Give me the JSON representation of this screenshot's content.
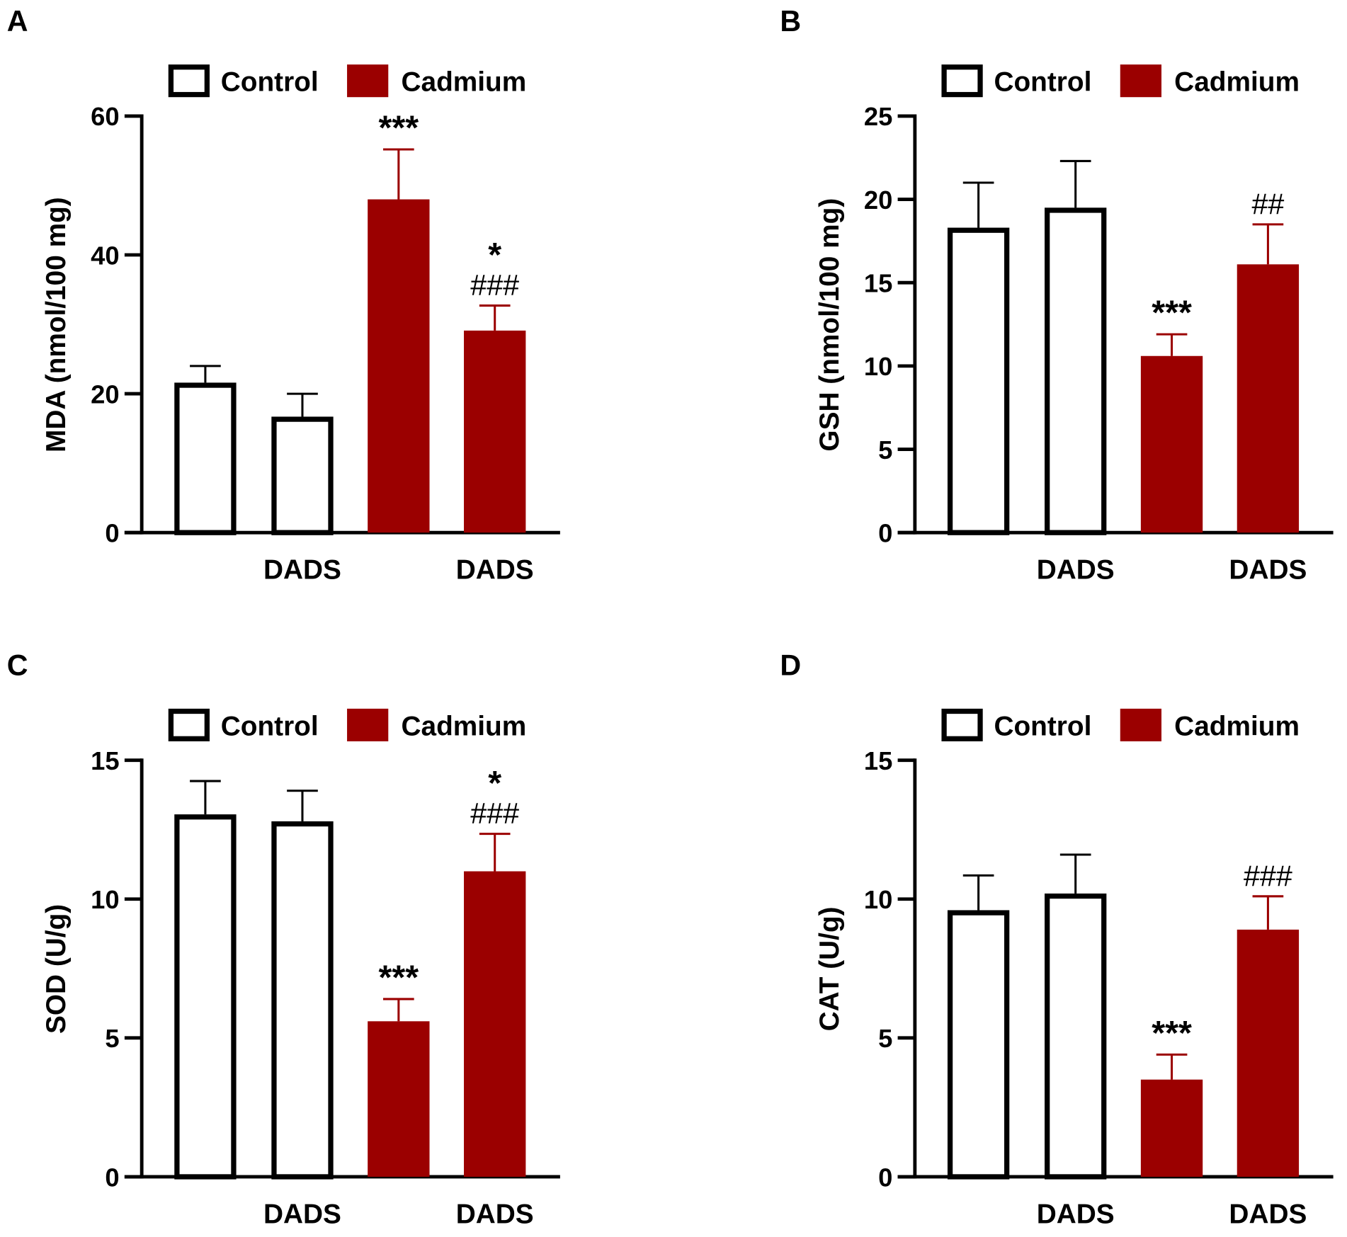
{
  "legend": {
    "control": "Control",
    "cadmium": "Cadmium"
  },
  "colors": {
    "control_fill": "#ffffff",
    "control_stroke": "#000000",
    "cadmium": "#9b0000"
  },
  "chart_data": [
    {
      "panel": "A",
      "type": "bar",
      "ylabel": "MDA (nmol/100 mg)",
      "ylim": [
        0,
        60
      ],
      "yticks": [
        "0",
        "20",
        "40",
        "60"
      ],
      "categories": [
        "",
        "DADS",
        "",
        "DADS"
      ],
      "groups": [
        "Control",
        "Control",
        "Cadmium",
        "Cadmium"
      ],
      "values": [
        21.6,
        16.7,
        48.0,
        29.1
      ],
      "errors": [
        2.4,
        3.3,
        7.2,
        3.6
      ],
      "annotations": [
        [],
        [],
        [
          "***"
        ],
        [
          "*",
          "###"
        ]
      ],
      "legend": "top"
    },
    {
      "panel": "B",
      "type": "bar",
      "ylabel": "GSH (nmol/100 mg)",
      "ylim": [
        0,
        25
      ],
      "yticks": [
        "0",
        "5",
        "10",
        "15",
        "20",
        "25"
      ],
      "categories": [
        "",
        "DADS",
        "",
        "DADS"
      ],
      "groups": [
        "Control",
        "Control",
        "Cadmium",
        "Cadmium"
      ],
      "values": [
        18.3,
        19.5,
        10.6,
        16.1
      ],
      "errors": [
        2.7,
        2.8,
        1.3,
        2.4
      ],
      "annotations": [
        [],
        [],
        [
          "***"
        ],
        [
          "##"
        ]
      ],
      "legend": "top"
    },
    {
      "panel": "C",
      "type": "bar",
      "ylabel": "SOD (U/g)",
      "ylim": [
        0,
        15
      ],
      "yticks": [
        "0",
        "5",
        "10",
        "15"
      ],
      "categories": [
        "",
        "DADS",
        "",
        "DADS"
      ],
      "groups": [
        "Control",
        "Control",
        "Cadmium",
        "Cadmium"
      ],
      "values": [
        13.05,
        12.8,
        5.6,
        11.0
      ],
      "errors": [
        1.2,
        1.1,
        0.8,
        1.35
      ],
      "annotations": [
        [],
        [],
        [
          "***"
        ],
        [
          "*",
          "###"
        ]
      ],
      "legend": "top"
    },
    {
      "panel": "D",
      "type": "bar",
      "ylabel": "CAT (U/g)",
      "ylim": [
        0,
        15
      ],
      "yticks": [
        "0",
        "5",
        "10",
        "15"
      ],
      "categories": [
        "",
        "DADS",
        "",
        "DADS"
      ],
      "groups": [
        "Control",
        "Control",
        "Cadmium",
        "Cadmium"
      ],
      "values": [
        9.6,
        10.2,
        3.5,
        8.9
      ],
      "errors": [
        1.25,
        1.4,
        0.9,
        1.2
      ],
      "annotations": [
        [],
        [],
        [
          "***"
        ],
        [
          "###"
        ]
      ],
      "legend": "top"
    }
  ]
}
